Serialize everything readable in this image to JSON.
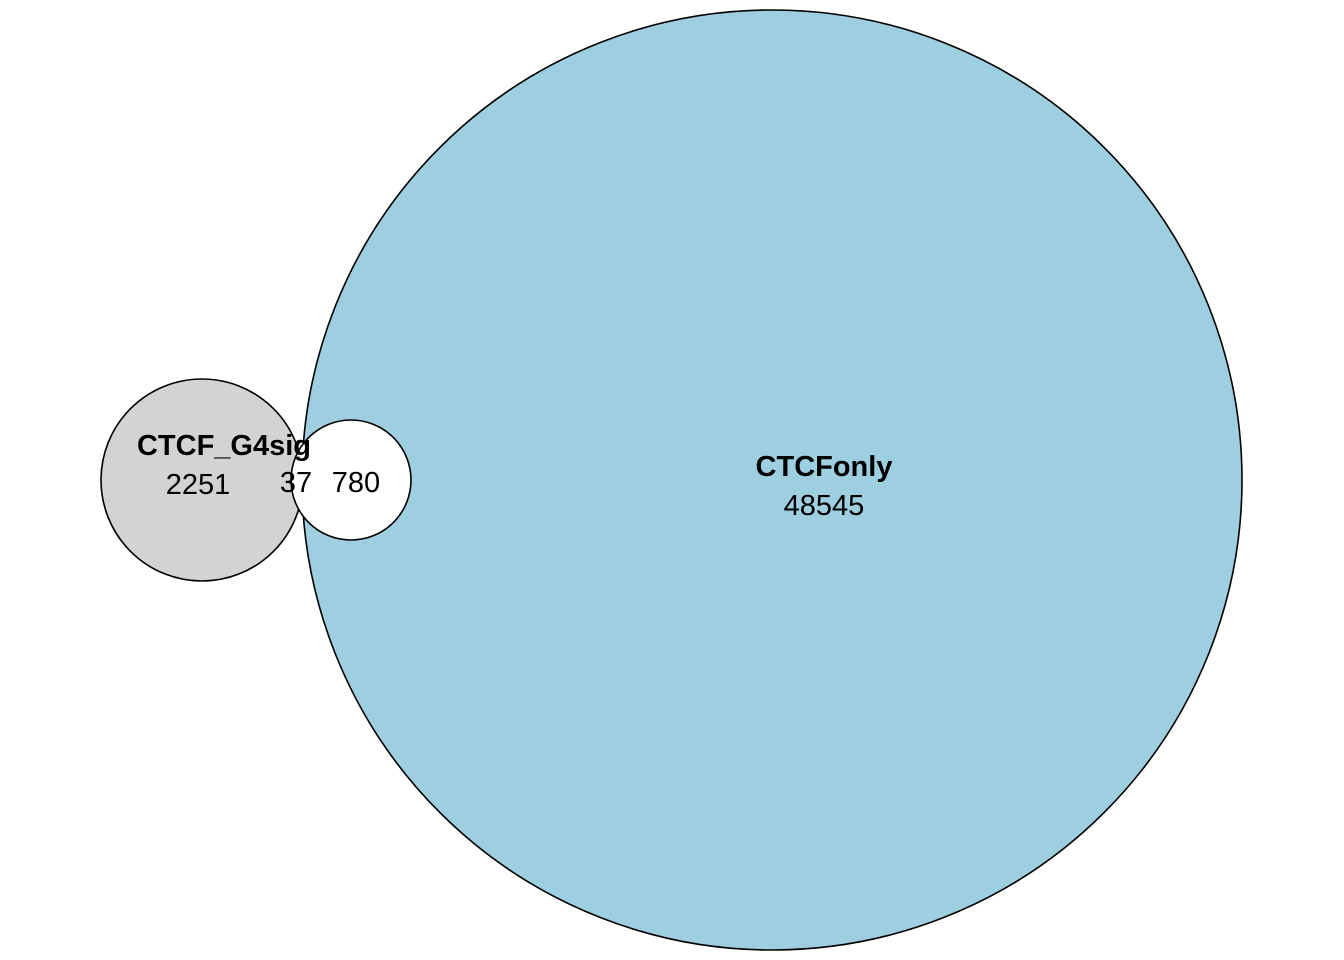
{
  "diagram": {
    "type": "euler",
    "sets": [
      {
        "id": "ctcf_g4sig",
        "name": "CTCF_G4sig",
        "count": "2251",
        "fill": "#d3d3d3"
      },
      {
        "id": "ctcfonly",
        "name": "CTCFonly",
        "count": "48545",
        "fill": "#9ecfe0"
      }
    ],
    "intersection_count": "37",
    "unlabeled_region": {
      "count": "780",
      "fill": "#ffffff"
    },
    "outline_color": "#000000"
  }
}
